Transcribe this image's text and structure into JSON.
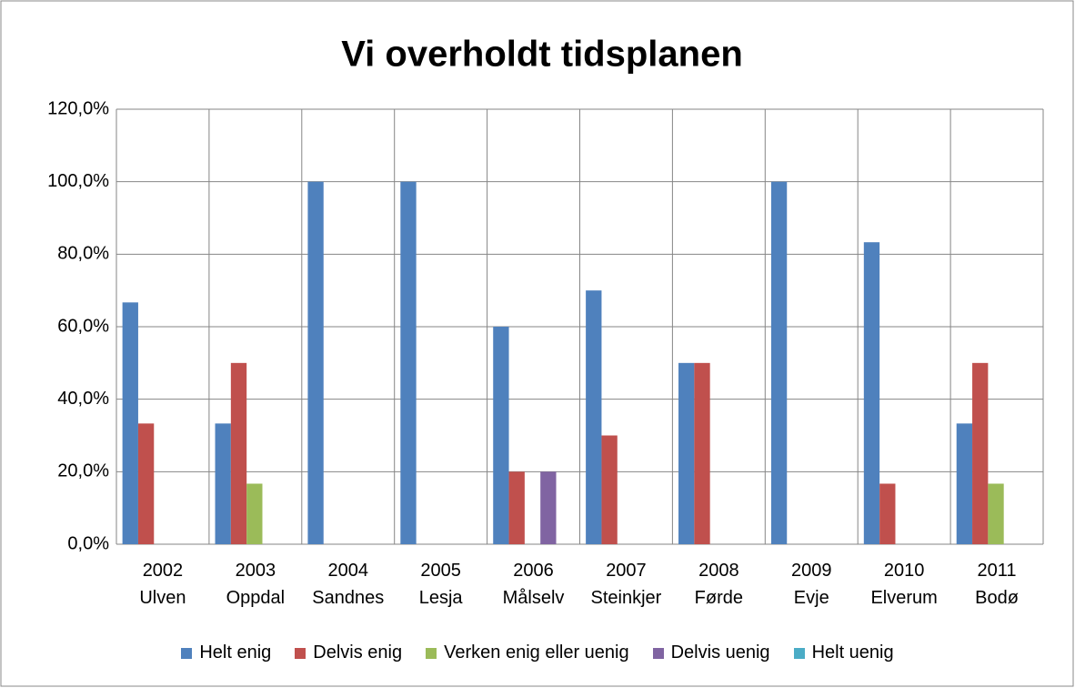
{
  "chart_data": {
    "type": "bar",
    "title": "Vi overholdt tidsplanen",
    "categories": [
      "2002\nUlven",
      "2003\nOppdal",
      "2004\nSandnes",
      "2005\nLesja",
      "2006\nMålselv",
      "2007\nSteinkjer",
      "2008\nFørde",
      "2009\nEvje",
      "2010\nElverum",
      "2011\nBodø"
    ],
    "series": [
      {
        "name": "Helt enig",
        "color": "#4f81bd",
        "values": [
          66.7,
          33.3,
          100,
          100,
          60,
          70,
          50,
          100,
          83.3,
          33.3
        ]
      },
      {
        "name": "Delvis enig",
        "color": "#c0504d",
        "values": [
          33.3,
          50,
          0,
          0,
          20,
          30,
          50,
          0,
          16.7,
          50
        ]
      },
      {
        "name": "Verken enig eller uenig",
        "color": "#9bbb59",
        "values": [
          0,
          16.7,
          0,
          0,
          0,
          0,
          0,
          0,
          0,
          16.7
        ]
      },
      {
        "name": "Delvis uenig",
        "color": "#8064a2",
        "values": [
          0,
          0,
          0,
          0,
          20,
          0,
          0,
          0,
          0,
          0
        ]
      },
      {
        "name": "Helt uenig",
        "color": "#4bacc6",
        "values": [
          0,
          0,
          0,
          0,
          0,
          0,
          0,
          0,
          0,
          0
        ]
      }
    ],
    "ylim": [
      0,
      120
    ],
    "yticks": [
      {
        "value": 0,
        "label": "0,0%"
      },
      {
        "value": 20,
        "label": "20,0%"
      },
      {
        "value": 40,
        "label": "40,0%"
      },
      {
        "value": 60,
        "label": "60,0%"
      },
      {
        "value": 80,
        "label": "80,0%"
      },
      {
        "value": 100,
        "label": "100,0%"
      },
      {
        "value": 120,
        "label": "120,0%"
      }
    ],
    "grid": true,
    "legend": "bottom"
  }
}
